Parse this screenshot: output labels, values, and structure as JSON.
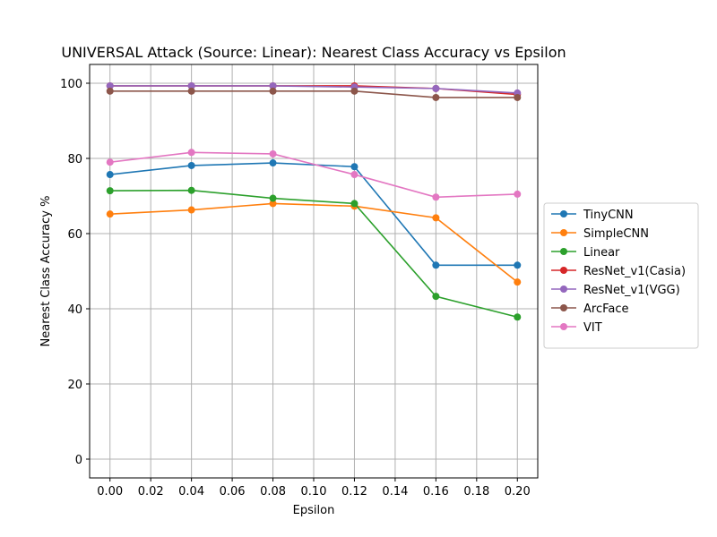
{
  "chart_data": {
    "type": "line",
    "title": "UNIVERSAL Attack (Source: Linear): Nearest Class Accuracy vs Epsilon",
    "xlabel": "Epsilon",
    "ylabel": "Nearest Class Accuracy %",
    "xlim": [
      -0.01,
      0.21
    ],
    "ylim": [
      -5,
      105
    ],
    "xticks": [
      "0.00",
      "0.02",
      "0.04",
      "0.06",
      "0.08",
      "0.10",
      "0.12",
      "0.14",
      "0.16",
      "0.18",
      "0.20"
    ],
    "yticks": [
      "0",
      "20",
      "40",
      "60",
      "80",
      "100"
    ],
    "grid": true,
    "legend_position": "center-right-outside",
    "x": [
      0.0,
      0.04,
      0.08,
      0.12,
      0.16,
      0.2
    ],
    "series": [
      {
        "name": "TinyCNN",
        "color": "#1f77b4",
        "values": [
          75.7,
          78.1,
          78.8,
          77.8,
          51.6,
          51.6
        ]
      },
      {
        "name": "SimpleCNN",
        "color": "#ff7f0e",
        "values": [
          65.2,
          66.3,
          68.0,
          67.3,
          64.2,
          47.1
        ]
      },
      {
        "name": "Linear",
        "color": "#2ca02c",
        "values": [
          71.4,
          71.5,
          69.4,
          68.0,
          43.3,
          37.8
        ]
      },
      {
        "name": "ResNet_v1(Casia)",
        "color": "#d62728",
        "values": [
          99.3,
          99.3,
          99.3,
          99.3,
          98.6,
          97.0
        ]
      },
      {
        "name": "ResNet_v1(VGG)",
        "color": "#9467bd",
        "values": [
          99.3,
          99.3,
          99.3,
          99.0,
          98.6,
          97.4
        ]
      },
      {
        "name": "ArcFace",
        "color": "#8c564b",
        "values": [
          97.9,
          97.9,
          97.9,
          97.9,
          96.2,
          96.2
        ]
      },
      {
        "name": "VIT",
        "color": "#e377c2",
        "values": [
          79.0,
          81.6,
          81.2,
          75.7,
          69.7,
          70.5
        ]
      }
    ]
  }
}
